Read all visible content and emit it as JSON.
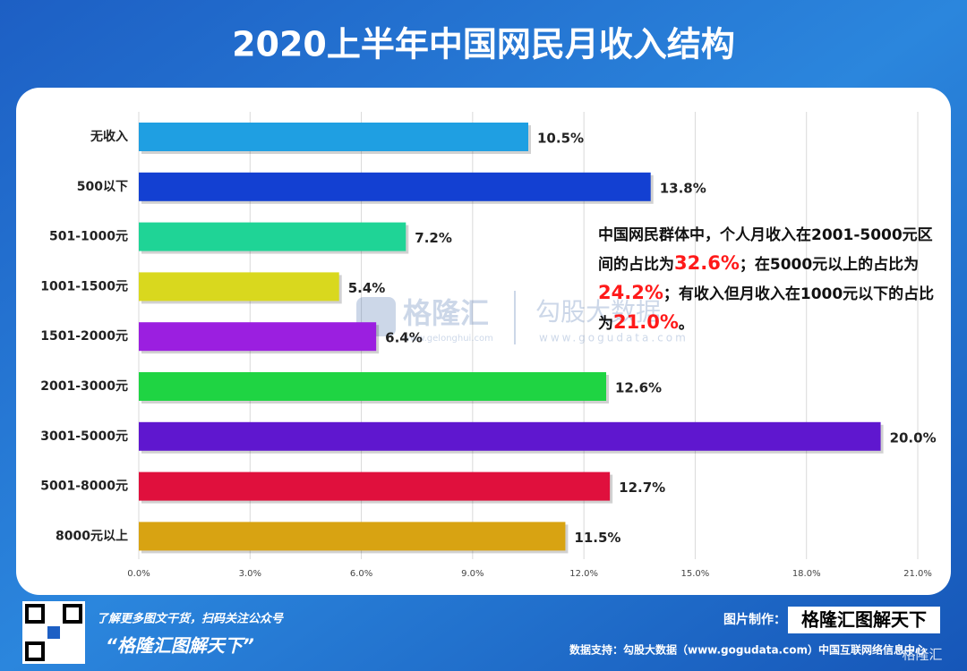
{
  "chart_data": {
    "type": "bar",
    "orientation": "horizontal",
    "title": "2020上半年中国网民月收入结构",
    "categories": [
      "无收入",
      "500以下",
      "501-1000元",
      "1001-1500元",
      "1501-2000元",
      "2001-3000元",
      "3001-5000元",
      "5001-8000元",
      "8000元以上"
    ],
    "values": [
      10.5,
      13.8,
      7.2,
      5.4,
      6.4,
      12.6,
      20.0,
      12.7,
      11.5
    ],
    "value_labels": [
      "10.5%",
      "13.8%",
      "7.2%",
      "5.4%",
      "6.4%",
      "12.6%",
      "20.0%",
      "12.7%",
      "11.5%"
    ],
    "colors": [
      "#1f9fe2",
      "#1340d2",
      "#1fd496",
      "#d9d81e",
      "#9b1fe0",
      "#1fd443",
      "#5f17cf",
      "#e0103d",
      "#d8a312"
    ],
    "xlim": [
      0,
      21
    ],
    "xticks": [
      {
        "value": 0,
        "label": "0.0%"
      },
      {
        "value": 3,
        "label": "3.0%"
      },
      {
        "value": 6,
        "label": "6.0%"
      },
      {
        "value": 9,
        "label": "9.0%"
      },
      {
        "value": 12,
        "label": "12.0%"
      },
      {
        "value": 15,
        "label": "15.0%"
      },
      {
        "value": 18,
        "label": "18.0%"
      },
      {
        "value": 21,
        "label": "21.0%"
      }
    ],
    "grid": true,
    "annotation": [
      {
        "text": "中国网民群体中，个人月收入在2001-5000元区间的占比为",
        "color": "#111111"
      },
      {
        "text": "32.6%",
        "color": "#ff1a1a"
      },
      {
        "text": "；在5000元以上的占比为",
        "color": "#111111"
      },
      {
        "text": "24.2%",
        "color": "#ff1a1a"
      },
      {
        "text": "；有收入但月收入在1000元以下的占比为",
        "color": "#111111"
      },
      {
        "text": "21.0%",
        "color": "#ff1a1a"
      },
      {
        "text": "。",
        "color": "#111111"
      }
    ]
  },
  "watermark": {
    "brand": "格隆汇",
    "brand_url": "www.gelonghui.com",
    "partner": "勾股大数据",
    "partner_url": "www.gogudata.com"
  },
  "footer": {
    "promo": "了解更多图文干货，扫码关注公众号",
    "account": "“格隆汇图解天下”",
    "made_by_label": "图片制作：",
    "made_by": "格隆汇图解天下",
    "source": "数据支持：勾股大数据（www.gogudata.com）中国互联网络信息中心",
    "logo": "格隆汇"
  }
}
